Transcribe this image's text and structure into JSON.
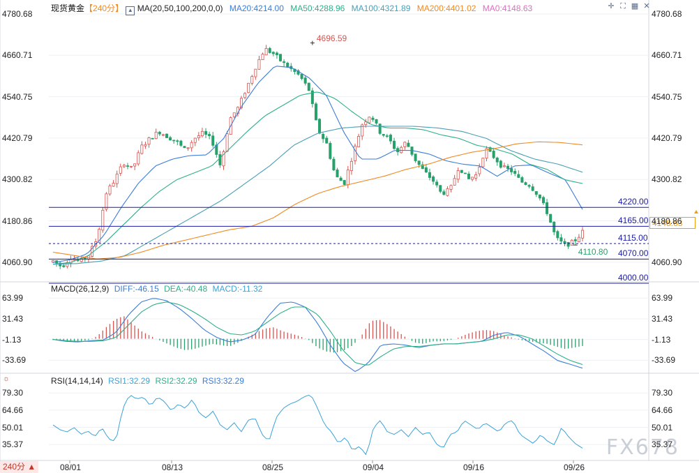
{
  "header": {
    "symbol": "现货黄金",
    "timeframe": "【240分】",
    "ma_name": "MA(20,50,100,200,0,0)",
    "ma20": "MA20:4214.00",
    "ma50": "MA50:4288.96",
    "ma100": "MA100:4321.89",
    "ma200": "MA200:4401.02",
    "ma0": "MA0:4148.63"
  },
  "macd_header": {
    "name": "MACD(26,12,9)",
    "diff": "DIFF:-46.15",
    "dea": "DEA:-40.48",
    "macd": "MACD:-11.32"
  },
  "rsi_header": {
    "name": "RSI(14,14,14)",
    "rsi1": "RSI1:32.29",
    "rsi2": "RSI2:32.29",
    "rsi3": "RSI3:32.29"
  },
  "timeframe_button": "240分 ▲",
  "watermark": "FX678",
  "current_price": "4148.63",
  "colors": {
    "up": "#d9534f",
    "down": "#27a06a",
    "ma20": "#3b7dd8",
    "ma50": "#2cb08a",
    "ma100": "#4a9fb5",
    "ma200": "#f08a24",
    "hline": "#1a1aa6",
    "diff": "#3b7dd8",
    "dea": "#2cb08a",
    "rsi": "#3aa3d8"
  },
  "icons": [
    "crosshair-icon",
    "fullscreen-icon",
    "grid-icon",
    "close-icon",
    "settings-icon"
  ],
  "chart_data": [
    {
      "type": "candlestick",
      "title": "现货黄金",
      "y_ticks": [
        4780.68,
        4660.71,
        4540.75,
        4420.79,
        4300.82,
        4180.86,
        4060.9
      ],
      "ylim": [
        4008,
        4780.68
      ],
      "x_ticks": [
        "08/01",
        "08/13",
        "08/25",
        "09/04",
        "09/16",
        "09/26"
      ],
      "annotations": [
        {
          "label": "4696.59",
          "type": "high"
        },
        {
          "label": "4110.80",
          "type": "low"
        }
      ],
      "horizontal_lines": [
        {
          "label": "4220.00",
          "value": 4220.0
        },
        {
          "label": "4165.00",
          "value": 4165.0
        },
        {
          "label": "4115.00",
          "value": 4115.0
        },
        {
          "label": "4070.00",
          "value": 4070.0
        },
        {
          "label": "4000.00",
          "value": 4000.0
        }
      ],
      "close_anchors": [
        4065,
        4048,
        4075,
        4062,
        4080,
        4130,
        4260,
        4300,
        4350,
        4330,
        4395,
        4420,
        4440,
        4425,
        4410,
        4385,
        4420,
        4435,
        4415,
        4338,
        4475,
        4510,
        4570,
        4630,
        4680,
        4665,
        4640,
        4620,
        4600,
        4560,
        4445,
        4405,
        4310,
        4290,
        4375,
        4460,
        4490,
        4440,
        4420,
        4380,
        4410,
        4360,
        4325,
        4300,
        4260,
        4270,
        4340,
        4300,
        4315,
        4390,
        4365,
        4335,
        4325,
        4295,
        4285,
        4255,
        4205,
        4130,
        4110,
        4120,
        4148.63
      ],
      "series": [
        {
          "name": "MA20",
          "values": [
            4060,
            4068,
            4085,
            4140,
            4220,
            4290,
            4340,
            4360,
            4370,
            4372,
            4420,
            4510,
            4580,
            4630,
            4625,
            4595,
            4545,
            4440,
            4360,
            4360,
            4385,
            4385,
            4375,
            4355,
            4345,
            4340,
            4310,
            4340,
            4343,
            4320,
            4300,
            4214
          ]
        },
        {
          "name": "MA50",
          "values": [
            4055,
            4060,
            4080,
            4120,
            4170,
            4220,
            4265,
            4300,
            4320,
            4340,
            4390,
            4440,
            4485,
            4515,
            4545,
            4555,
            4535,
            4495,
            4460,
            4450,
            4450,
            4445,
            4430,
            4420,
            4400,
            4390,
            4375,
            4345,
            4330,
            4300,
            4288.96
          ]
        },
        {
          "name": "MA100",
          "values": [
            4055,
            4057,
            4064,
            4080,
            4120,
            4160,
            4200,
            4240,
            4290,
            4340,
            4400,
            4435,
            4450,
            4455,
            4455,
            4455,
            4450,
            4440,
            4420,
            4385,
            4360,
            4345,
            4321.89
          ]
        },
        {
          "name": "MA200",
          "values": [
            4090,
            4080,
            4070,
            4075,
            4090,
            4110,
            4125,
            4140,
            4155,
            4165,
            4190,
            4230,
            4260,
            4280,
            4295,
            4310,
            4330,
            4345,
            4365,
            4380,
            4390,
            4404,
            4410,
            4408,
            4401.02
          ]
        }
      ]
    },
    {
      "type": "bar",
      "title": "MACD(26,12,9)",
      "y_ticks": [
        63.99,
        31.43,
        -1.13,
        -33.69
      ],
      "ylim": [
        -52,
        72
      ],
      "histogram": [
        -2,
        -3,
        -5,
        -4,
        -2,
        4,
        18,
        30,
        36,
        24,
        12,
        5,
        -2,
        -8,
        -14,
        -18,
        -16,
        -12,
        -8,
        -10,
        -12,
        -6,
        2,
        10,
        16,
        18,
        12,
        8,
        4,
        -2,
        -14,
        -20,
        -22,
        -18,
        -10,
        6,
        28,
        30,
        22,
        12,
        2,
        -6,
        -8,
        -4,
        -4,
        -2,
        2,
        8,
        12,
        14,
        12,
        6,
        2,
        -2,
        -4,
        -6,
        -8,
        -12,
        -16,
        -14,
        -11.32
      ],
      "series": [
        {
          "name": "DIFF",
          "values": [
            -1,
            -4,
            -5,
            -3,
            -2,
            10,
            38,
            58,
            64,
            60,
            48,
            32,
            14,
            2,
            -5,
            -2,
            6,
            34,
            56,
            58,
            50,
            24,
            -10,
            -38,
            -52,
            -38,
            -10,
            -8,
            -10,
            -14,
            -10,
            -8,
            -8,
            -6,
            -4,
            6,
            10,
            4,
            -8,
            -20,
            -34,
            -40,
            -46.15
          ]
        },
        {
          "name": "DEA",
          "values": [
            -1,
            -3,
            -4,
            -4,
            -3,
            2,
            22,
            42,
            54,
            58,
            54,
            44,
            32,
            18,
            8,
            6,
            12,
            26,
            40,
            50,
            50,
            38,
            12,
            -18,
            -38,
            -42,
            -28,
            -16,
            -12,
            -12,
            -10,
            -8,
            -8,
            -6,
            -4,
            0,
            6,
            6,
            0,
            -12,
            -24,
            -34,
            -40.48
          ]
        }
      ]
    },
    {
      "type": "line",
      "title": "RSI(14,14,14)",
      "y_ticks": [
        79.3,
        64.66,
        50.01,
        35.37
      ],
      "ylim": [
        23,
        86
      ],
      "series": [
        {
          "name": "RSI1",
          "values": [
            52,
            48,
            46,
            50,
            44,
            47,
            42,
            50,
            40,
            38,
            66,
            78,
            74,
            76,
            68,
            76,
            72,
            64,
            70,
            66,
            74,
            62,
            58,
            64,
            52,
            48,
            54,
            46,
            56,
            58,
            44,
            38,
            58,
            66,
            70,
            72,
            76,
            78,
            66,
            52,
            46,
            36,
            42,
            30,
            34,
            26,
            50,
            56,
            46,
            44,
            48,
            42,
            50,
            44,
            46,
            36,
            32,
            44,
            46,
            56,
            52,
            48,
            54,
            50,
            46,
            54,
            56,
            44,
            40,
            36,
            44,
            38,
            35,
            50,
            42,
            36,
            32.29
          ]
        },
        {
          "name": "RSI2",
          "values": [
            32.29
          ]
        },
        {
          "name": "RSI3",
          "values": [
            32.29
          ]
        }
      ]
    }
  ]
}
